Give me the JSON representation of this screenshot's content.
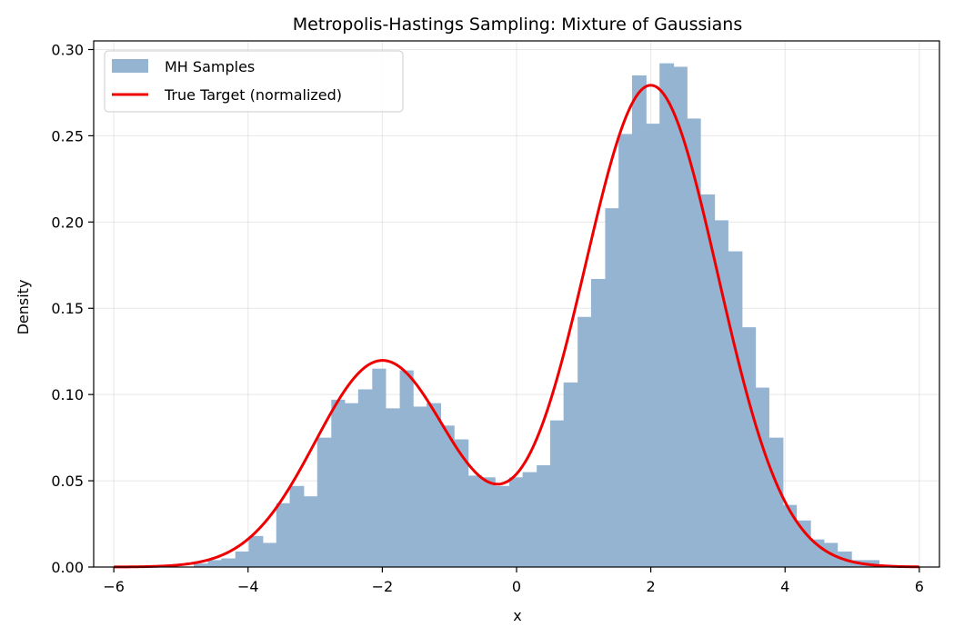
{
  "chart_data": {
    "type": "bar",
    "title": "Metropolis-Hastings Sampling: Mixture of Gaussians",
    "xlabel": "x",
    "ylabel": "Density",
    "xlim": [
      -6.3,
      6.3
    ],
    "ylim": [
      0,
      0.305
    ],
    "xticks": [
      -6,
      -4,
      -2,
      0,
      2,
      4,
      6
    ],
    "xtick_labels": [
      "−6",
      "−4",
      "−2",
      "0",
      "2",
      "4",
      "6"
    ],
    "yticks": [
      0.0,
      0.05,
      0.1,
      0.15,
      0.2,
      0.25,
      0.3
    ],
    "ytick_labels": [
      "0.00",
      "0.05",
      "0.10",
      "0.15",
      "0.20",
      "0.25",
      "0.30"
    ],
    "grid": true,
    "legend_position": "top-left",
    "histogram": {
      "name": "MH Samples",
      "color": "#94b4d2",
      "bins": [
        {
          "x0": -4.81,
          "x1": -4.6,
          "y": 0.002
        },
        {
          "x0": -4.6,
          "x1": -4.4,
          "y": 0.004
        },
        {
          "x0": -4.4,
          "x1": -4.19,
          "y": 0.005
        },
        {
          "x0": -4.19,
          "x1": -3.99,
          "y": 0.009
        },
        {
          "x0": -3.99,
          "x1": -3.78,
          "y": 0.018
        },
        {
          "x0": -3.78,
          "x1": -3.58,
          "y": 0.014
        },
        {
          "x0": -3.58,
          "x1": -3.38,
          "y": 0.037
        },
        {
          "x0": -3.38,
          "x1": -3.17,
          "y": 0.047
        },
        {
          "x0": -3.17,
          "x1": -2.97,
          "y": 0.041
        },
        {
          "x0": -2.97,
          "x1": -2.76,
          "y": 0.075
        },
        {
          "x0": -2.76,
          "x1": -2.56,
          "y": 0.097
        },
        {
          "x0": -2.56,
          "x1": -2.36,
          "y": 0.095
        },
        {
          "x0": -2.36,
          "x1": -2.15,
          "y": 0.103
        },
        {
          "x0": -2.15,
          "x1": -1.95,
          "y": 0.115
        },
        {
          "x0": -1.95,
          "x1": -1.74,
          "y": 0.092
        },
        {
          "x0": -1.74,
          "x1": -1.54,
          "y": 0.114
        },
        {
          "x0": -1.54,
          "x1": -1.34,
          "y": 0.093
        },
        {
          "x0": -1.34,
          "x1": -1.13,
          "y": 0.095
        },
        {
          "x0": -1.13,
          "x1": -0.93,
          "y": 0.082
        },
        {
          "x0": -0.93,
          "x1": -0.72,
          "y": 0.074
        },
        {
          "x0": -0.72,
          "x1": -0.52,
          "y": 0.053
        },
        {
          "x0": -0.52,
          "x1": -0.32,
          "y": 0.052
        },
        {
          "x0": -0.32,
          "x1": -0.11,
          "y": 0.047
        },
        {
          "x0": -0.11,
          "x1": 0.09,
          "y": 0.052
        },
        {
          "x0": 0.09,
          "x1": 0.3,
          "y": 0.055
        },
        {
          "x0": 0.3,
          "x1": 0.5,
          "y": 0.059
        },
        {
          "x0": 0.5,
          "x1": 0.7,
          "y": 0.085
        },
        {
          "x0": 0.7,
          "x1": 0.91,
          "y": 0.107
        },
        {
          "x0": 0.91,
          "x1": 1.11,
          "y": 0.145
        },
        {
          "x0": 1.11,
          "x1": 1.32,
          "y": 0.167
        },
        {
          "x0": 1.32,
          "x1": 1.52,
          "y": 0.208
        },
        {
          "x0": 1.52,
          "x1": 1.72,
          "y": 0.251
        },
        {
          "x0": 1.72,
          "x1": 1.93,
          "y": 0.285
        },
        {
          "x0": 1.93,
          "x1": 2.13,
          "y": 0.257
        },
        {
          "x0": 2.13,
          "x1": 2.34,
          "y": 0.292
        },
        {
          "x0": 2.34,
          "x1": 2.54,
          "y": 0.29
        },
        {
          "x0": 2.54,
          "x1": 2.74,
          "y": 0.26
        },
        {
          "x0": 2.74,
          "x1": 2.95,
          "y": 0.216
        },
        {
          "x0": 2.95,
          "x1": 3.15,
          "y": 0.201
        },
        {
          "x0": 3.15,
          "x1": 3.36,
          "y": 0.183
        },
        {
          "x0": 3.36,
          "x1": 3.56,
          "y": 0.139
        },
        {
          "x0": 3.56,
          "x1": 3.76,
          "y": 0.104
        },
        {
          "x0": 3.76,
          "x1": 3.97,
          "y": 0.075
        },
        {
          "x0": 3.97,
          "x1": 4.17,
          "y": 0.036
        },
        {
          "x0": 4.17,
          "x1": 4.38,
          "y": 0.027
        },
        {
          "x0": 4.38,
          "x1": 4.58,
          "y": 0.016
        },
        {
          "x0": 4.58,
          "x1": 4.78,
          "y": 0.014
        },
        {
          "x0": 4.78,
          "x1": 4.99,
          "y": 0.009
        },
        {
          "x0": 4.99,
          "x1": 5.19,
          "y": 0.004
        },
        {
          "x0": 5.19,
          "x1": 5.4,
          "y": 0.004
        }
      ]
    },
    "curve": {
      "name": "True Target (normalized)",
      "color": "#ee0000",
      "x_range": [
        -6,
        6
      ],
      "components": [
        {
          "weight": 0.3,
          "mean": -2,
          "std": 1
        },
        {
          "weight": 0.7,
          "mean": 2,
          "std": 1
        }
      ]
    }
  }
}
